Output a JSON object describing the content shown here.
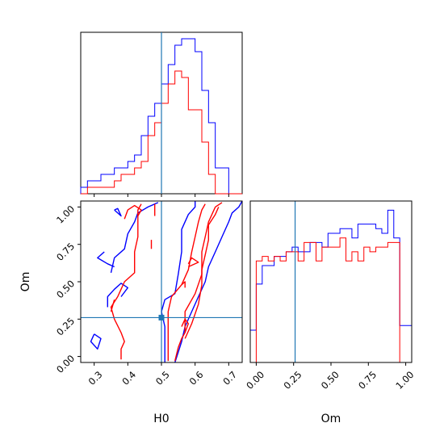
{
  "chart_data": [
    {
      "type": "histogram",
      "panel": "H0 marginal",
      "xlabel": "",
      "ylabel": "",
      "xlim": [
        0.26,
        0.74
      ],
      "x_ticks": [
        0.3,
        0.4,
        0.5,
        0.6,
        0.7
      ],
      "show_tick_labels": false,
      "truth": 0.5,
      "series": [
        {
          "color": "#0000ff",
          "bin_edges": [
            0.26,
            0.28,
            0.3,
            0.32,
            0.34,
            0.36,
            0.38,
            0.4,
            0.42,
            0.44,
            0.46,
            0.48,
            0.5,
            0.52,
            0.54,
            0.56,
            0.58,
            0.6,
            0.62,
            0.64,
            0.66,
            0.68,
            0.7,
            0.72,
            0.74
          ],
          "counts": [
            1,
            2,
            2,
            3,
            3,
            4,
            4,
            5,
            6,
            9,
            12,
            14,
            17,
            20,
            23,
            24,
            24,
            22,
            16,
            11,
            4,
            4,
            0,
            0
          ]
        },
        {
          "color": "#ff0000",
          "bin_edges": [
            0.26,
            0.28,
            0.3,
            0.32,
            0.34,
            0.36,
            0.38,
            0.4,
            0.42,
            0.44,
            0.46,
            0.48,
            0.5,
            0.52,
            0.54,
            0.56,
            0.58,
            0.6,
            0.62,
            0.64,
            0.66,
            0.68,
            0.7,
            0.72,
            0.74
          ],
          "counts": [
            0,
            1,
            1,
            1,
            1,
            2,
            3,
            3,
            4,
            5,
            9,
            11,
            14,
            17,
            19,
            18,
            13,
            13,
            8,
            3,
            0,
            0,
            0,
            0
          ]
        }
      ],
      "ylim": [
        0,
        25
      ]
    },
    {
      "type": "contour",
      "panel": "H0 vs Om",
      "xlabel": "H0",
      "ylabel": "Om",
      "xlim": [
        0.26,
        0.74
      ],
      "ylim": [
        -0.04,
        1.04
      ],
      "x_ticks": [
        0.3,
        0.4,
        0.5,
        0.6,
        0.7
      ],
      "y_ticks": [
        0.0,
        0.25,
        0.5,
        0.75,
        1.0
      ],
      "x_tick_labels": [
        "0.3",
        "0.4",
        "0.5",
        "0.6",
        "0.7"
      ],
      "y_tick_labels": [
        "0.00",
        "0.25",
        "0.50",
        "0.75",
        "1.00"
      ],
      "truth": {
        "x": 0.5,
        "y": 0.26
      },
      "series": [
        {
          "color": "#0000ff",
          "contours": [
            [
              [
                0.35,
                0.56
              ],
              [
                0.36,
                0.66
              ],
              [
                0.39,
                0.72
              ],
              [
                0.4,
                0.82
              ],
              [
                0.42,
                0.9
              ],
              [
                0.43,
                0.96
              ],
              [
                0.46,
                1.0
              ],
              [
                0.49,
                1.03
              ]
            ],
            [
              [
                0.33,
                0.7
              ],
              [
                0.31,
                0.66
              ],
              [
                0.34,
                0.62
              ],
              [
                0.36,
                0.6
              ]
            ],
            [
              [
                0.34,
                0.33
              ],
              [
                0.34,
                0.4
              ],
              [
                0.36,
                0.45
              ],
              [
                0.38,
                0.49
              ],
              [
                0.4,
                0.46
              ],
              [
                0.38,
                0.4
              ]
            ],
            [
              [
                0.3,
                0.15
              ],
              [
                0.29,
                0.1
              ],
              [
                0.31,
                0.05
              ],
              [
                0.32,
                0.12
              ],
              [
                0.3,
                0.15
              ]
            ],
            [
              [
                0.36,
                0.98
              ],
              [
                0.38,
                0.94
              ],
              [
                0.37,
                0.99
              ],
              [
                0.36,
                0.98
              ]
            ],
            [
              [
                0.51,
                -0.04
              ],
              [
                0.51,
                0.1
              ],
              [
                0.51,
                0.2
              ],
              [
                0.5,
                0.3
              ],
              [
                0.51,
                0.38
              ],
              [
                0.54,
                0.42
              ],
              [
                0.55,
                0.55
              ],
              [
                0.56,
                0.7
              ],
              [
                0.56,
                0.85
              ],
              [
                0.58,
                0.95
              ],
              [
                0.6,
                1.0
              ],
              [
                0.6,
                1.04
              ]
            ],
            [
              [
                0.54,
                -0.04
              ],
              [
                0.56,
                0.1
              ],
              [
                0.57,
                0.2
              ],
              [
                0.59,
                0.3
              ],
              [
                0.61,
                0.4
              ],
              [
                0.63,
                0.5
              ],
              [
                0.64,
                0.6
              ],
              [
                0.66,
                0.7
              ],
              [
                0.68,
                0.8
              ],
              [
                0.7,
                0.9
              ],
              [
                0.71,
                0.96
              ],
              [
                0.73,
                1.0
              ],
              [
                0.74,
                1.04
              ]
            ]
          ]
        },
        {
          "color": "#ff0000",
          "contours": [
            [
              [
                0.38,
                -0.02
              ],
              [
                0.38,
                0.05
              ],
              [
                0.39,
                0.1
              ],
              [
                0.38,
                0.16
              ],
              [
                0.36,
                0.25
              ],
              [
                0.35,
                0.33
              ],
              [
                0.37,
                0.4
              ],
              [
                0.38,
                0.45
              ],
              [
                0.39,
                0.5
              ],
              [
                0.42,
                0.56
              ],
              [
                0.42,
                0.62
              ],
              [
                0.42,
                0.7
              ],
              [
                0.43,
                0.8
              ],
              [
                0.43,
                0.9
              ],
              [
                0.43,
                0.98
              ],
              [
                0.44,
                1.02
              ]
            ],
            [
              [
                0.35,
                0.3
              ],
              [
                0.36,
                0.38
              ]
            ],
            [
              [
                0.39,
                0.92
              ],
              [
                0.4,
                0.98
              ],
              [
                0.42,
                1.01
              ],
              [
                0.44,
                0.98
              ],
              [
                0.43,
                0.94
              ]
            ],
            [
              [
                0.52,
                -0.03
              ],
              [
                0.52,
                0.08
              ],
              [
                0.52,
                0.18
              ],
              [
                0.52,
                0.3
              ],
              [
                0.53,
                0.4
              ],
              [
                0.56,
                0.48
              ],
              [
                0.58,
                0.58
              ],
              [
                0.59,
                0.7
              ],
              [
                0.6,
                0.8
              ],
              [
                0.61,
                0.9
              ],
              [
                0.62,
                0.98
              ],
              [
                0.63,
                1.02
              ]
            ],
            [
              [
                0.54,
                -0.03
              ],
              [
                0.55,
                0.06
              ],
              [
                0.56,
                0.12
              ],
              [
                0.57,
                0.16
              ],
              [
                0.57,
                0.3
              ],
              [
                0.6,
                0.42
              ],
              [
                0.62,
                0.55
              ],
              [
                0.62,
                0.7
              ],
              [
                0.63,
                0.8
              ],
              [
                0.64,
                0.9
              ],
              [
                0.66,
                1.0
              ],
              [
                0.68,
                1.03
              ]
            ],
            [
              [
                0.57,
                0.12
              ],
              [
                0.59,
                0.22
              ],
              [
                0.61,
                0.35
              ],
              [
                0.62,
                0.48
              ],
              [
                0.62,
                0.58
              ],
              [
                0.63,
                0.68
              ],
              [
                0.64,
                0.78
              ],
              [
                0.64,
                0.88
              ],
              [
                0.66,
                0.95
              ],
              [
                0.67,
                1.0
              ]
            ],
            [
              [
                0.58,
                0.6
              ],
              [
                0.61,
                0.63
              ],
              [
                0.59,
                0.66
              ],
              [
                0.58,
                0.62
              ]
            ],
            [
              [
                0.56,
                0.48
              ],
              [
                0.57,
                0.5
              ],
              [
                0.57,
                0.46
              ]
            ],
            [
              [
                0.47,
                0.72
              ],
              [
                0.47,
                0.78
              ]
            ],
            [
              [
                0.48,
                0.94
              ],
              [
                0.48,
                1.02
              ]
            ],
            [
              [
                0.57,
                0.16
              ],
              [
                0.58,
                0.22
              ],
              [
                0.57,
                0.25
              ],
              [
                0.56,
                0.2
              ]
            ]
          ]
        }
      ]
    },
    {
      "type": "histogram",
      "panel": "Om marginal",
      "xlabel": "Om",
      "ylabel": "",
      "xlim": [
        -0.04,
        1.04
      ],
      "x_ticks": [
        0.0,
        0.25,
        0.5,
        0.75,
        1.0
      ],
      "x_tick_labels": [
        "0.00",
        "0.25",
        "0.50",
        "0.75",
        "1.00"
      ],
      "truth": 0.26,
      "series": [
        {
          "color": "#0000ff",
          "bin_edges": [
            -0.04,
            0.0,
            0.04,
            0.08,
            0.12,
            0.16,
            0.2,
            0.24,
            0.28,
            0.32,
            0.36,
            0.4,
            0.44,
            0.48,
            0.52,
            0.56,
            0.6,
            0.64,
            0.68,
            0.72,
            0.76,
            0.8,
            0.84,
            0.88,
            0.92,
            0.96,
            1.0,
            1.04
          ],
          "counts": [
            7,
            17,
            21,
            21,
            23,
            23,
            24,
            25,
            24,
            24,
            26,
            26,
            25,
            28,
            28,
            29,
            29,
            27,
            30,
            30,
            30,
            29,
            28,
            33,
            27,
            8,
            8
          ]
        },
        {
          "color": "#ff0000",
          "bin_edges": [
            -0.04,
            0.0,
            0.04,
            0.08,
            0.12,
            0.16,
            0.2,
            0.24,
            0.28,
            0.32,
            0.36,
            0.4,
            0.44,
            0.48,
            0.52,
            0.56,
            0.6,
            0.64,
            0.68,
            0.72,
            0.76,
            0.8,
            0.84,
            0.88,
            0.92,
            0.96,
            1.0,
            1.04
          ],
          "counts": [
            0,
            22,
            23,
            22,
            23,
            22,
            24,
            24,
            22,
            26,
            26,
            22,
            25,
            25,
            25,
            27,
            22,
            24,
            22,
            25,
            24,
            25,
            25,
            26,
            26,
            0,
            0
          ]
        }
      ],
      "ylim": [
        0,
        35
      ]
    }
  ]
}
